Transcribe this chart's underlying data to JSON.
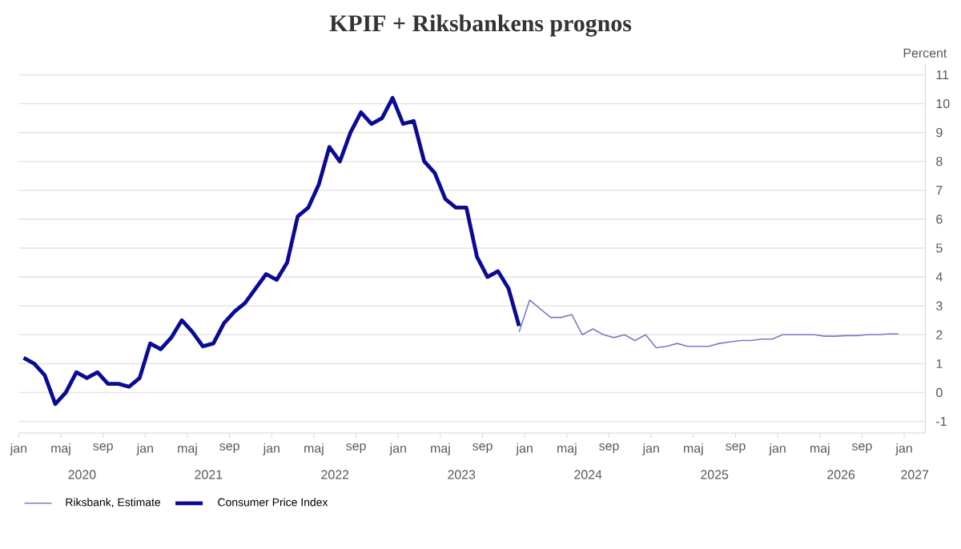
{
  "chart_data": {
    "type": "line",
    "title": "KPIF + Riksbankens prognos",
    "ylabel": "Percent",
    "xlim": [
      "2020-01",
      "2027-03"
    ],
    "ylim": [
      -1.4,
      11.4
    ],
    "xticks": [
      {
        "value": "2020-01",
        "label": "jan"
      },
      {
        "value": "2020-05",
        "label": "maj"
      },
      {
        "value": "2020-09",
        "label": "sep"
      },
      {
        "value": "2021-01",
        "label": "jan"
      },
      {
        "value": "2021-05",
        "label": "maj"
      },
      {
        "value": "2021-09",
        "label": "sep"
      },
      {
        "value": "2022-01",
        "label": "jan"
      },
      {
        "value": "2022-05",
        "label": "maj"
      },
      {
        "value": "2022-09",
        "label": "sep"
      },
      {
        "value": "2023-01",
        "label": "jan"
      },
      {
        "value": "2023-05",
        "label": "maj"
      },
      {
        "value": "2023-09",
        "label": "sep"
      },
      {
        "value": "2024-01",
        "label": "jan"
      },
      {
        "value": "2024-05",
        "label": "maj"
      },
      {
        "value": "2024-09",
        "label": "sep"
      },
      {
        "value": "2025-01",
        "label": "jan"
      },
      {
        "value": "2025-05",
        "label": "maj"
      },
      {
        "value": "2025-09",
        "label": "sep"
      },
      {
        "value": "2026-01",
        "label": "jan"
      },
      {
        "value": "2026-05",
        "label": "maj"
      },
      {
        "value": "2026-09",
        "label": "sep"
      },
      {
        "value": "2027-01",
        "label": "jan"
      }
    ],
    "yticks": [
      -1,
      0,
      1,
      2,
      3,
      4,
      5,
      6,
      7,
      8,
      9,
      10,
      11
    ],
    "grid": "y",
    "legend": "bottom left",
    "line_style": "solid",
    "marker": "none",
    "annotations": [
      "2020",
      "2021",
      "2022",
      "2023",
      "2024",
      "2025",
      "2026",
      "2027"
    ],
    "series": [
      {
        "name": "Riksbank, Estimate",
        "color": "#7b7bc8",
        "x": [
          "2023-12-15",
          "2024-01-15",
          "2024-02-15",
          "2024-03-15",
          "2024-04-15",
          "2024-05-15",
          "2024-06-15",
          "2024-07-15",
          "2024-08-15",
          "2024-09-15",
          "2024-10-15",
          "2024-11-15",
          "2024-12-15",
          "2025-01-15",
          "2025-02-15",
          "2025-03-15",
          "2025-04-15",
          "2025-05-15",
          "2025-06-15",
          "2025-07-15",
          "2025-08-15",
          "2025-09-15",
          "2025-10-15",
          "2025-11-15",
          "2025-12-15",
          "2026-01-15",
          "2026-02-15",
          "2026-03-15",
          "2026-04-15",
          "2026-05-15",
          "2026-06-15",
          "2026-07-15",
          "2026-08-15",
          "2026-09-15",
          "2026-10-15",
          "2026-11-15",
          "2026-12-15"
        ],
        "values": [
          2.1,
          3.2,
          2.9,
          2.6,
          2.6,
          2.7,
          2.0,
          2.2,
          2.0,
          1.9,
          2.0,
          1.8,
          2.0,
          1.55,
          1.6,
          1.7,
          1.6,
          1.6,
          1.6,
          1.7,
          1.75,
          1.8,
          1.8,
          1.85,
          1.85,
          2.0,
          2.0,
          2.0,
          2.0,
          1.95,
          1.95,
          1.97,
          1.97,
          2.0,
          2.0,
          2.03,
          2.03
        ]
      },
      {
        "name": "Consumer Price Index",
        "color": "#0a0a96",
        "x": [
          "2020-01-15",
          "2020-02-15",
          "2020-03-15",
          "2020-04-15",
          "2020-05-15",
          "2020-06-15",
          "2020-07-15",
          "2020-08-15",
          "2020-09-15",
          "2020-10-15",
          "2020-11-15",
          "2020-12-15",
          "2021-01-15",
          "2021-02-15",
          "2021-03-15",
          "2021-04-15",
          "2021-05-15",
          "2021-06-15",
          "2021-07-15",
          "2021-08-15",
          "2021-09-15",
          "2021-10-15",
          "2021-11-15",
          "2021-12-15",
          "2022-01-15",
          "2022-02-15",
          "2022-03-15",
          "2022-04-15",
          "2022-05-15",
          "2022-06-15",
          "2022-07-15",
          "2022-08-15",
          "2022-09-15",
          "2022-10-15",
          "2022-11-15",
          "2022-12-15",
          "2023-01-15",
          "2023-02-15",
          "2023-03-15",
          "2023-04-15",
          "2023-05-15",
          "2023-06-15",
          "2023-07-15",
          "2023-08-15",
          "2023-09-15",
          "2023-10-15",
          "2023-11-15",
          "2023-12-15"
        ],
        "values": [
          1.2,
          1.0,
          0.6,
          -0.4,
          0.0,
          0.7,
          0.5,
          0.7,
          0.3,
          0.3,
          0.2,
          0.5,
          1.7,
          1.5,
          1.9,
          2.5,
          2.1,
          1.6,
          1.7,
          2.4,
          2.8,
          3.1,
          3.6,
          4.1,
          3.9,
          4.5,
          6.1,
          6.4,
          7.2,
          8.5,
          8.0,
          9.0,
          9.7,
          9.3,
          9.5,
          10.2,
          9.3,
          9.4,
          8.0,
          7.6,
          6.7,
          6.4,
          6.4,
          4.7,
          4.0,
          4.2,
          3.6,
          2.3
        ]
      }
    ]
  }
}
